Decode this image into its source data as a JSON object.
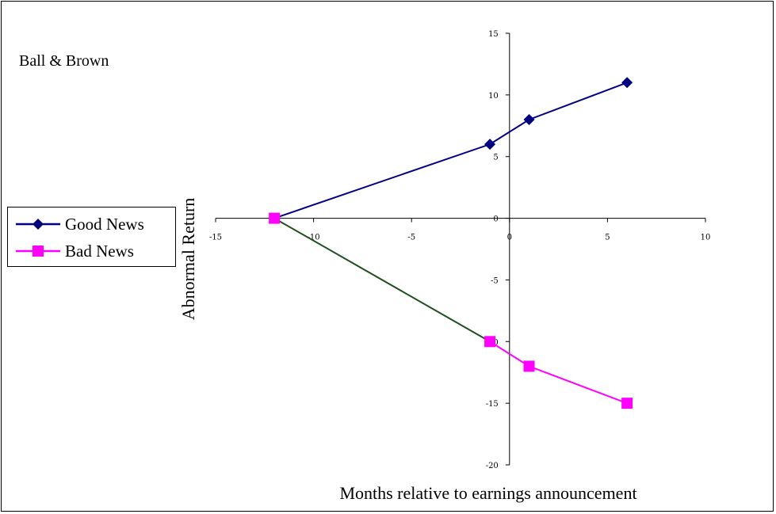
{
  "chart_data": {
    "type": "line",
    "title": "Ball & Brown",
    "xlabel": "Months relative to earnings announcement",
    "ylabel": "Abnormal Return",
    "xlim": [
      -15,
      10
    ],
    "ylim": [
      -20,
      15
    ],
    "x_ticks": [
      -15,
      -10,
      -5,
      0,
      5,
      10
    ],
    "y_ticks": [
      15,
      10,
      5,
      0,
      -5,
      -10,
      -15,
      -20
    ],
    "grid": false,
    "legend_position": "left",
    "series": [
      {
        "name": "Good News",
        "color": "#000080",
        "marker": "diamond",
        "points": [
          [
            -12,
            0
          ],
          [
            -1,
            6
          ],
          [
            1,
            8
          ],
          [
            6,
            11
          ]
        ]
      },
      {
        "name": "Bad News",
        "color": "#FF00FF",
        "marker": "square",
        "points": [
          [
            -12,
            0
          ],
          [
            -1,
            -10
          ],
          [
            1,
            -12
          ],
          [
            6,
            -15
          ]
        ]
      }
    ],
    "connector_color": "#1F4F1F"
  }
}
